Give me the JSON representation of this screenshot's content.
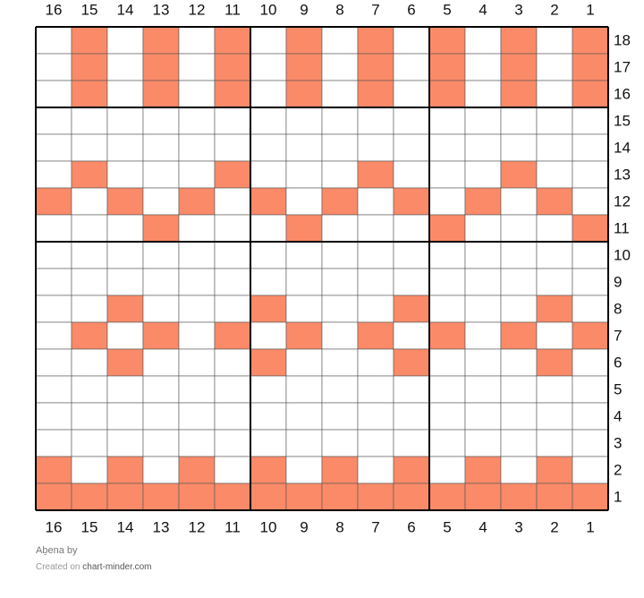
{
  "chart": {
    "columns": [
      "16",
      "15",
      "14",
      "13",
      "12",
      "11",
      "10",
      "9",
      "8",
      "7",
      "6",
      "5",
      "4",
      "3",
      "2",
      "1"
    ],
    "fill_color": "#fa8a68",
    "empty_color": "#ffffff",
    "rows": [
      {
        "label": "18",
        "cells": [
          0,
          1,
          0,
          1,
          0,
          1,
          0,
          1,
          0,
          1,
          0,
          1,
          0,
          1,
          0,
          1
        ]
      },
      {
        "label": "17",
        "cells": [
          0,
          1,
          0,
          1,
          0,
          1,
          0,
          1,
          0,
          1,
          0,
          1,
          0,
          1,
          0,
          1
        ]
      },
      {
        "label": "16",
        "cells": [
          0,
          1,
          0,
          1,
          0,
          1,
          0,
          1,
          0,
          1,
          0,
          1,
          0,
          1,
          0,
          1
        ]
      },
      {
        "label": "15",
        "cells": [
          0,
          0,
          0,
          0,
          0,
          0,
          0,
          0,
          0,
          0,
          0,
          0,
          0,
          0,
          0,
          0
        ]
      },
      {
        "label": "14",
        "cells": [
          0,
          0,
          0,
          0,
          0,
          0,
          0,
          0,
          0,
          0,
          0,
          0,
          0,
          0,
          0,
          0
        ]
      },
      {
        "label": "13",
        "cells": [
          0,
          1,
          0,
          0,
          0,
          1,
          0,
          0,
          0,
          1,
          0,
          0,
          0,
          1,
          0,
          0
        ]
      },
      {
        "label": "12",
        "cells": [
          1,
          0,
          1,
          0,
          1,
          0,
          1,
          0,
          1,
          0,
          1,
          0,
          1,
          0,
          1,
          0
        ]
      },
      {
        "label": "11",
        "cells": [
          0,
          0,
          0,
          1,
          0,
          0,
          0,
          1,
          0,
          0,
          0,
          1,
          0,
          0,
          0,
          1
        ]
      },
      {
        "label": "10",
        "cells": [
          0,
          0,
          0,
          0,
          0,
          0,
          0,
          0,
          0,
          0,
          0,
          0,
          0,
          0,
          0,
          0
        ]
      },
      {
        "label": "9",
        "cells": [
          0,
          0,
          0,
          0,
          0,
          0,
          0,
          0,
          0,
          0,
          0,
          0,
          0,
          0,
          0,
          0
        ]
      },
      {
        "label": "8",
        "cells": [
          0,
          0,
          1,
          0,
          0,
          0,
          1,
          0,
          0,
          0,
          1,
          0,
          0,
          0,
          1,
          0
        ]
      },
      {
        "label": "7",
        "cells": [
          0,
          1,
          0,
          1,
          0,
          1,
          0,
          1,
          0,
          1,
          0,
          1,
          0,
          1,
          0,
          1
        ]
      },
      {
        "label": "6",
        "cells": [
          0,
          0,
          1,
          0,
          0,
          0,
          1,
          0,
          0,
          0,
          1,
          0,
          0,
          0,
          1,
          0
        ]
      },
      {
        "label": "5",
        "cells": [
          0,
          0,
          0,
          0,
          0,
          0,
          0,
          0,
          0,
          0,
          0,
          0,
          0,
          0,
          0,
          0
        ]
      },
      {
        "label": "4",
        "cells": [
          0,
          0,
          0,
          0,
          0,
          0,
          0,
          0,
          0,
          0,
          0,
          0,
          0,
          0,
          0,
          0
        ]
      },
      {
        "label": "3",
        "cells": [
          0,
          0,
          0,
          0,
          0,
          0,
          0,
          0,
          0,
          0,
          0,
          0,
          0,
          0,
          0,
          0
        ]
      },
      {
        "label": "2",
        "cells": [
          1,
          0,
          1,
          0,
          1,
          0,
          1,
          0,
          1,
          0,
          1,
          0,
          1,
          0,
          1,
          0
        ]
      },
      {
        "label": "1",
        "cells": [
          1,
          1,
          1,
          1,
          1,
          1,
          1,
          1,
          1,
          1,
          1,
          1,
          1,
          1,
          1,
          1
        ]
      }
    ]
  },
  "footer": {
    "title": "Aḇena by",
    "created": "Created on",
    "site": "chart-minder.com"
  }
}
